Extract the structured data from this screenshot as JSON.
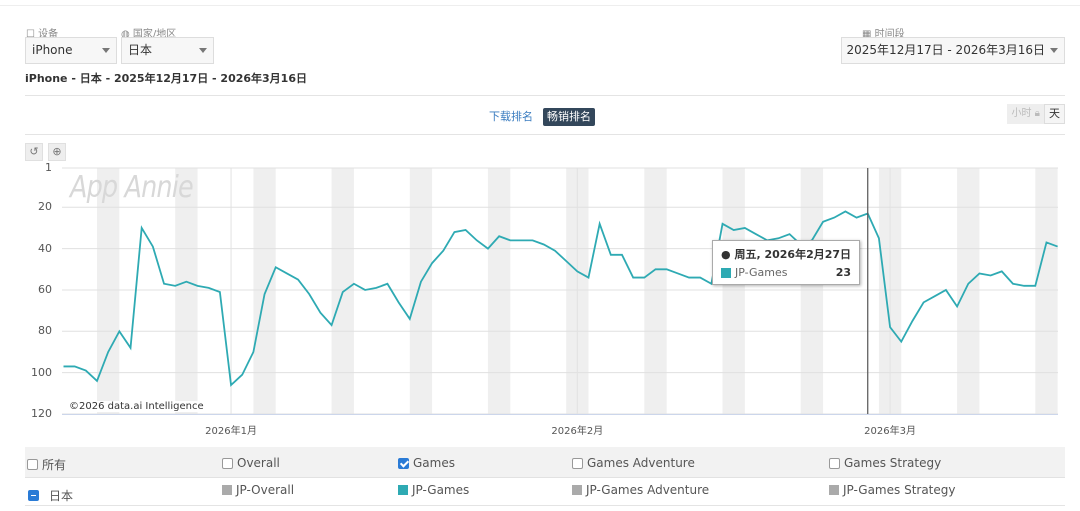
{
  "filters": {
    "device_label": "设备",
    "device_value": "iPhone",
    "country_label": "国家/地区",
    "country_value": "日本",
    "period_label": "时间段",
    "period_value": "2025年12月17日 - 2026年3月16日"
  },
  "subtitle": "iPhone - 日本 - 2025年12月17日 - 2026年3月16日",
  "tabs": {
    "download": "下载排名",
    "grossing": "畅销排名"
  },
  "granularity": {
    "hour": "小时",
    "day": "天"
  },
  "watermark": "App Annie",
  "copyright": "©2026 data.ai Intelligence",
  "tooltip": {
    "date": "周五, 2026年2月27日",
    "series": "JP-Games",
    "value": "23"
  },
  "legend": {
    "header": [
      {
        "label": "所有",
        "checked": false
      },
      {
        "label": "Overall",
        "checked": false
      },
      {
        "label": "Games",
        "checked": true
      },
      {
        "label": "Games Adventure",
        "checked": false
      },
      {
        "label": "Games Strategy",
        "checked": false
      }
    ],
    "country": "日本",
    "series": [
      {
        "label": "JP-Overall",
        "color": "#aaaaaa"
      },
      {
        "label": "JP-Games",
        "color": "#2eaab3"
      },
      {
        "label": "JP-Games Adventure",
        "color": "#aaaaaa"
      },
      {
        "label": "JP-Games Strategy",
        "color": "#aaaaaa"
      }
    ]
  },
  "chart_data": {
    "type": "line",
    "start_date": "2025-12-17",
    "end_date": "2026-03-16",
    "ylim": [
      120,
      1
    ],
    "yticks": [
      1,
      20,
      40,
      60,
      80,
      100,
      120
    ],
    "xtick_labels": [
      "2026年1月",
      "2026年2月",
      "2026年3月"
    ],
    "series": [
      {
        "name": "JP-Games",
        "color": "#2eaab3",
        "values": [
          97,
          97,
          99,
          104,
          90,
          80,
          88,
          30,
          39,
          57,
          58,
          56,
          58,
          59,
          61,
          106,
          101,
          90,
          62,
          49,
          52,
          55,
          62,
          71,
          77,
          61,
          57,
          60,
          59,
          57,
          66,
          74,
          56,
          47,
          41,
          32,
          31,
          36,
          40,
          34,
          36,
          36,
          36,
          38,
          41,
          46,
          51,
          54,
          28,
          43,
          43,
          54,
          54,
          50,
          50,
          52,
          54,
          54,
          57,
          28,
          31,
          30,
          33,
          36,
          35,
          33,
          38,
          36,
          27,
          25,
          22,
          25,
          23,
          35,
          78,
          85,
          75,
          66,
          63,
          60,
          68,
          57,
          52,
          53,
          51,
          57,
          58,
          58,
          37,
          39
        ]
      }
    ]
  }
}
